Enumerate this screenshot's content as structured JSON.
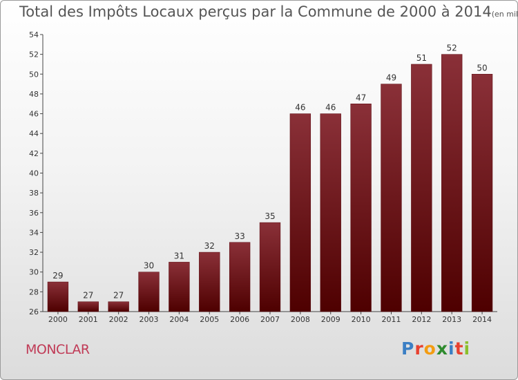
{
  "chart_data": {
    "type": "bar",
    "title": "Total des Impôts Locaux perçus par la Commune de 2000 à 2014",
    "unit": "(en milliers d'€)",
    "categories": [
      "2000",
      "2001",
      "2002",
      "2003",
      "2004",
      "2005",
      "2006",
      "2007",
      "2008",
      "2009",
      "2010",
      "2011",
      "2012",
      "2013",
      "2014"
    ],
    "values": [
      29,
      27,
      27,
      30,
      31,
      32,
      33,
      35,
      46,
      46,
      47,
      49,
      51,
      52,
      50
    ],
    "ylim": [
      26,
      54
    ],
    "yticks": [
      26,
      28,
      30,
      32,
      34,
      36,
      38,
      40,
      42,
      44,
      46,
      48,
      50,
      52,
      54
    ],
    "grid": false,
    "bar_color": "#7a1f26"
  },
  "commune": "MONCLAR",
  "logo": {
    "letters": [
      "P",
      "r",
      "o",
      "x",
      "i",
      "t",
      "i"
    ],
    "colors": [
      "#3b7fc4",
      "#e8412f",
      "#f39c12",
      "#2e8b2e",
      "#3b7fc4",
      "#e8412f",
      "#8bbf2b"
    ]
  }
}
